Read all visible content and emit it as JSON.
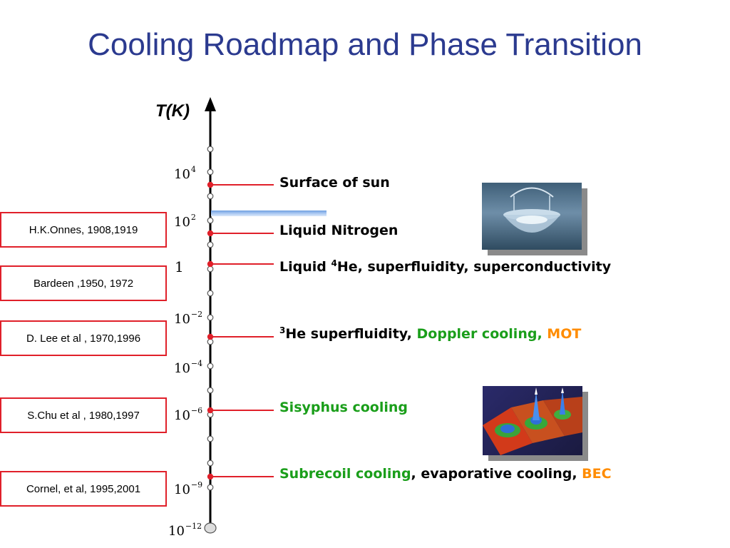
{
  "title": "Cooling Roadmap and Phase Transition",
  "axis": {
    "label": "T(K)",
    "ticks": [
      {
        "base": "10",
        "exp": "4"
      },
      {
        "base": "10",
        "exp": "2"
      },
      {
        "base": "1",
        "exp": ""
      },
      {
        "base": "10",
        "exp": "−2"
      },
      {
        "base": "10",
        "exp": "−4"
      },
      {
        "base": "10",
        "exp": "−6"
      },
      {
        "base": "10",
        "exp": "−9"
      },
      {
        "base": "10",
        "exp": "−12"
      }
    ]
  },
  "milestones": {
    "surface_of_sun": "Surface of sun",
    "liquid_nitrogen": "Liquid Nitrogen",
    "liquid_he4_prefix": "Liquid ",
    "liquid_he4_sup": "4",
    "liquid_he4_suffix": "He, superfluidity, superconductivity",
    "he3_sup": "3",
    "he3_text": "He superfluidity, ",
    "doppler": "Doppler cooling, ",
    "mot": "MOT",
    "sisyphus": "Sisyphus cooling",
    "subrecoil": "Subrecoil cooling",
    "evaporative": ", evaporative cooling, ",
    "bec": "BEC"
  },
  "people": [
    "H.K.Onnes, 1908,1919",
    "Bardeen ,1950, 1972",
    "D. Lee et al , 1970,1996",
    "S.Chu et al , 1980,1997",
    "Cornel, et al, 1995,2001"
  ],
  "colors": {
    "title": "#2b3a8f",
    "marker_red": "#e0202a",
    "green_text": "#1a9e1a",
    "orange_text": "#ff8c00",
    "nitrogen_band": "#8fb4e8"
  }
}
